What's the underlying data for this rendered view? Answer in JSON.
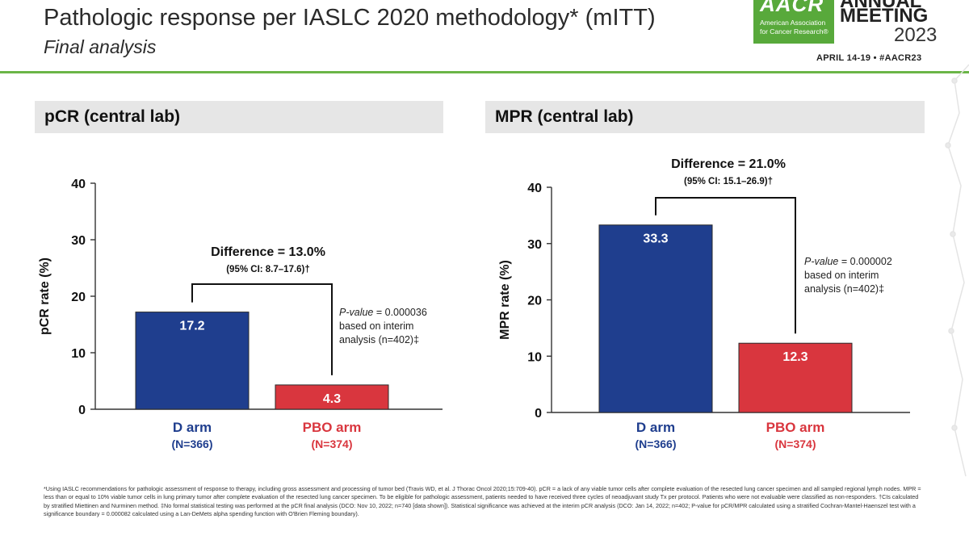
{
  "header": {
    "title": "Pathologic response per IASLC 2020 methodology* (mITT)",
    "subtitle": "Final analysis",
    "logo_text": "AACR",
    "logo_subtext": "American Association for Cancer Research®",
    "meeting_line1": "ANNUAL",
    "meeting_line2": "MEETING",
    "meeting_year": "2023",
    "meeting_dates": "APRIL 14-19 • #AACR23"
  },
  "colors": {
    "accent": "#6bb547",
    "d_arm": "#1f3e8e",
    "pbo_arm": "#d9363e",
    "panel_bg": "#e6e6e6"
  },
  "chart_data": [
    {
      "type": "bar",
      "title": "pCR (central lab)",
      "ylabel": "pCR rate (%)",
      "ylim": [
        0,
        40
      ],
      "yticks": [
        "0",
        "10",
        "20",
        "30",
        "40"
      ],
      "categories": [
        "D arm",
        "PBO arm"
      ],
      "category_n": [
        "(N=366)",
        "(N=374)"
      ],
      "values": [
        17.2,
        4.3
      ],
      "value_labels": [
        "17.2",
        "4.3"
      ],
      "difference": "Difference = 13.0%",
      "ci": "(95% CI: 8.7–17.6)†",
      "pvalue_label": "P-value",
      "pvalue_rest": " = 0.000036",
      "pvalue_line2": "based on interim",
      "pvalue_line3": "analysis (n=402)‡"
    },
    {
      "type": "bar",
      "title": "MPR (central lab)",
      "ylabel": "MPR rate (%)",
      "ylim": [
        0,
        40
      ],
      "yticks": [
        "0",
        "10",
        "20",
        "30",
        "40"
      ],
      "categories": [
        "D arm",
        "PBO arm"
      ],
      "category_n": [
        "(N=366)",
        "(N=374)"
      ],
      "values": [
        33.3,
        12.3
      ],
      "value_labels": [
        "33.3",
        "12.3"
      ],
      "difference": "Difference = 21.0%",
      "ci": "(95% CI: 15.1–26.9)†",
      "pvalue_label": "P-value",
      "pvalue_rest": " = 0.000002",
      "pvalue_line2": "based on interim",
      "pvalue_line3": "analysis (n=402)‡"
    }
  ],
  "footnote": "*Using IASLC recommendations for pathologic assessment of response to therapy, including gross assessment and processing of tumor bed (Travis WD, et al. J Thorac Oncol 2020;15:709-40). pCR = a lack of any viable tumor cells after complete evaluation of the resected lung cancer specimen and all sampled regional lymph nodes. MPR = less than or equal to 10% viable tumor cells in lung primary tumor after complete evaluation of the resected lung cancer specimen. To be eligible for pathologic assessment, patients needed to have received three cycles of neoadjuvant study Tx per protocol. Patients who were not evaluable were classified as non-responders. †CIs calculated by stratified Miettinen and Nurminen method. ‡No formal statistical testing was performed at the pCR final analysis (DCO: Nov 10, 2022; n=740 [data shown]). Statistical significance was achieved at the interim pCR analysis (DCO: Jan 14, 2022; n=402; P-value for pCR/MPR calculated using a stratified Cochran-Mantel-Haenszel test with a significance boundary = 0.000082 calculated using a Lan-DeMets alpha spending function with O'Brien Fleming boundary)."
}
